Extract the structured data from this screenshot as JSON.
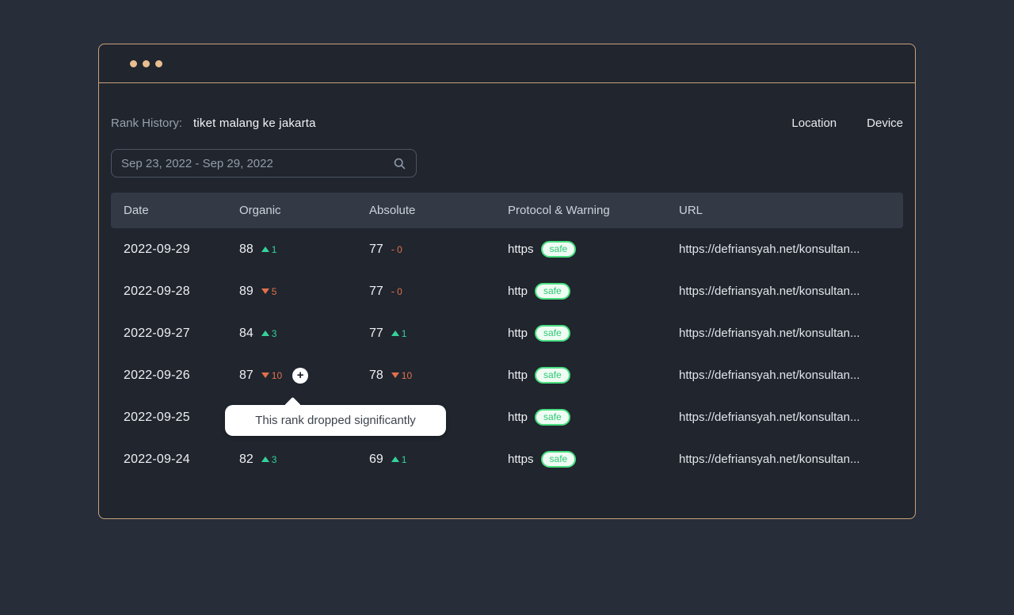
{
  "window": {
    "dots": [
      "dot",
      "dot",
      "dot"
    ]
  },
  "header": {
    "label": "Rank History:",
    "keyword": "tiket malang ke jakarta",
    "location_label": "Location",
    "device_label": "Device"
  },
  "date_range": {
    "value": "Sep 23, 2022 - Sep 29, 2022",
    "icon": "search-icon"
  },
  "table": {
    "columns": [
      "Date",
      "Organic",
      "Absolute",
      "Protocol & Warning",
      "URL"
    ],
    "rows": [
      {
        "date": "2022-09-29",
        "organic": {
          "value": "88",
          "dir": "up",
          "delta": "1"
        },
        "absolute": {
          "value": "77",
          "dir": "flat",
          "delta": "0"
        },
        "protocol": "https",
        "warning": "safe",
        "url": "https://defriansyah.net/konsultan..."
      },
      {
        "date": "2022-09-28",
        "organic": {
          "value": "89",
          "dir": "down",
          "delta": "5"
        },
        "absolute": {
          "value": "77",
          "dir": "flat",
          "delta": "0"
        },
        "protocol": "http",
        "warning": "safe",
        "url": "https://defriansyah.net/konsultan..."
      },
      {
        "date": "2022-09-27",
        "organic": {
          "value": "84",
          "dir": "up",
          "delta": "3"
        },
        "absolute": {
          "value": "77",
          "dir": "up",
          "delta": "1"
        },
        "protocol": "http",
        "warning": "safe",
        "url": "https://defriansyah.net/konsultan..."
      },
      {
        "date": "2022-09-26",
        "organic": {
          "value": "87",
          "dir": "down",
          "delta": "10",
          "note": true
        },
        "absolute": {
          "value": "78",
          "dir": "down",
          "delta": "10"
        },
        "protocol": "http",
        "warning": "safe",
        "url": "https://defriansyah.net/konsultan..."
      },
      {
        "date": "2022-09-25",
        "organic": null,
        "absolute": null,
        "protocol": "http",
        "warning": "safe",
        "url": "https://defriansyah.net/konsultan..."
      },
      {
        "date": "2022-09-24",
        "organic": {
          "value": "82",
          "dir": "up",
          "delta": "3"
        },
        "absolute": {
          "value": "69",
          "dir": "up",
          "delta": "1"
        },
        "protocol": "https",
        "warning": "safe",
        "url": "https://defriansyah.net/konsultan..."
      }
    ]
  },
  "tooltip": {
    "text": "This rank dropped significantly"
  },
  "colors": {
    "accent_tan": "#c9a27c",
    "dot_tan": "#e8be8f",
    "up_green": "#34d399",
    "down_orange": "#e0714b",
    "badge_border_green": "#4ade80",
    "badge_text_green": "#2fc775",
    "tooltip_bg": "#ffffff"
  }
}
